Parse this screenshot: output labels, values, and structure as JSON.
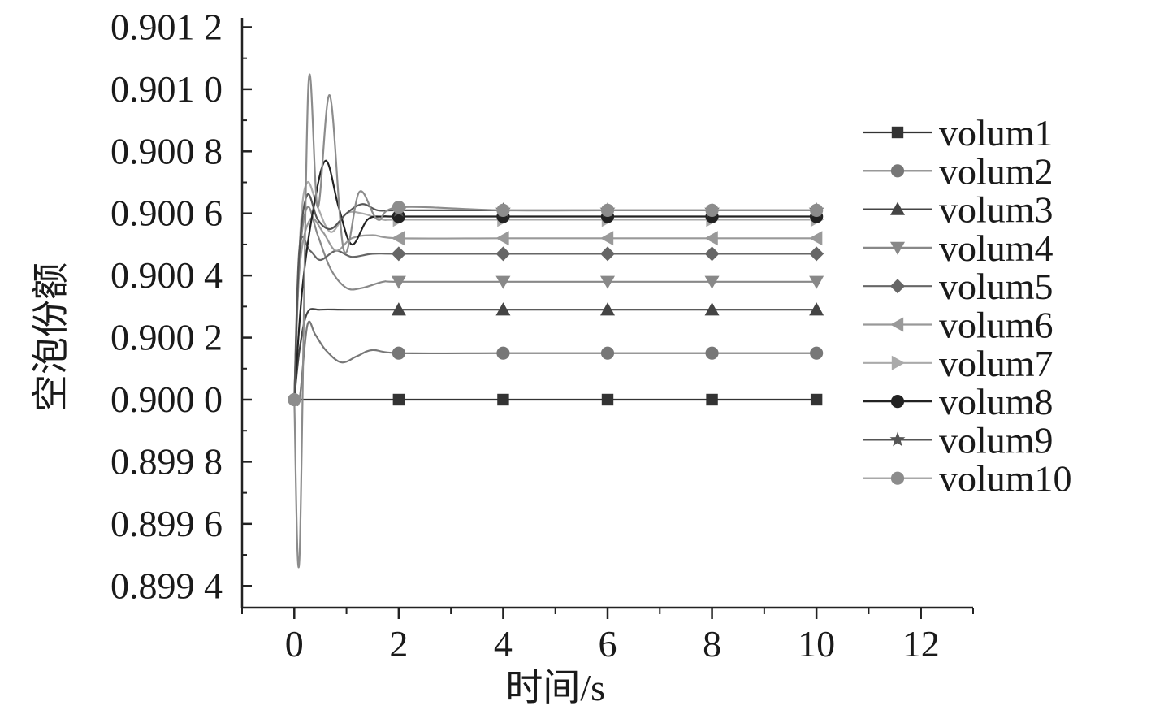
{
  "chart_data": {
    "type": "line",
    "xlabel": "时间/s",
    "ylabel": "空泡份额",
    "xlim": [
      -1,
      13
    ],
    "ylim": [
      0.89933,
      0.90123
    ],
    "x_ticks": [
      0,
      2,
      4,
      6,
      8,
      10,
      12
    ],
    "x_tick_labels": [
      "0",
      "2",
      "4",
      "6",
      "8",
      "10",
      "12"
    ],
    "y_ticks": [
      0.8994,
      0.8996,
      0.8998,
      0.9,
      0.9002,
      0.9004,
      0.9006,
      0.9008,
      0.901,
      0.9012
    ],
    "y_tick_labels": [
      "0.899 4",
      "0.899 6",
      "0.899 8",
      "0.900 0",
      "0.900 2",
      "0.900 4",
      "0.900 6",
      "0.900 8",
      "0.901 0",
      "0.901 2"
    ],
    "marker_x": [
      2,
      4,
      6,
      8,
      10
    ],
    "legend_position": "right",
    "grid": false,
    "series": [
      {
        "name": "volum1",
        "marker": "square",
        "color": "#333333",
        "x": [
          0,
          0.1,
          2,
          4,
          6,
          8,
          10
        ],
        "y": [
          0.9,
          0.9,
          0.9,
          0.9,
          0.9,
          0.9,
          0.9
        ]
      },
      {
        "name": "volum2",
        "marker": "circle",
        "color": "#777777",
        "x": [
          0,
          0.1,
          0.25,
          0.4,
          0.6,
          0.9,
          1.2,
          1.5,
          2,
          4,
          6,
          8,
          10
        ],
        "y": [
          0.9,
          0.9,
          0.90024,
          0.90021,
          0.90016,
          0.90012,
          0.90014,
          0.90016,
          0.90015,
          0.90015,
          0.90015,
          0.90015,
          0.90015
        ]
      },
      {
        "name": "volum3",
        "marker": "triangle-up",
        "color": "#444444",
        "x": [
          0,
          0.1,
          0.25,
          0.5,
          1,
          2,
          4,
          6,
          8,
          10
        ],
        "y": [
          0.9,
          0.90016,
          0.90028,
          0.90029,
          0.90029,
          0.90029,
          0.90029,
          0.90029,
          0.90029,
          0.90029
        ]
      },
      {
        "name": "volum4",
        "marker": "triangle-down",
        "color": "#888888",
        "x": [
          0,
          0.1,
          0.25,
          0.45,
          0.7,
          1,
          1.3,
          1.7,
          2,
          4,
          6,
          8,
          10
        ],
        "y": [
          0.9,
          0.90045,
          0.90062,
          0.90053,
          0.90042,
          0.90036,
          0.90036,
          0.90038,
          0.90038,
          0.90038,
          0.90038,
          0.90038,
          0.90038
        ]
      },
      {
        "name": "volum5",
        "marker": "diamond",
        "color": "#666666",
        "x": [
          0,
          0.1,
          0.3,
          0.5,
          0.8,
          1.1,
          1.5,
          2,
          4,
          6,
          8,
          10
        ],
        "y": [
          0.9,
          0.90049,
          0.90048,
          0.90045,
          0.90048,
          0.90046,
          0.90047,
          0.90047,
          0.90047,
          0.90047,
          0.90047,
          0.90047
        ]
      },
      {
        "name": "volum6",
        "marker": "triangle-left",
        "color": "#999999",
        "x": [
          0,
          0.1,
          0.3,
          0.55,
          0.8,
          1.1,
          1.5,
          2,
          4,
          6,
          8,
          10
        ],
        "y": [
          0.9,
          0.90042,
          0.90058,
          0.90054,
          0.90048,
          0.90052,
          0.90053,
          0.90052,
          0.90052,
          0.90052,
          0.90052,
          0.90052
        ]
      },
      {
        "name": "volum7",
        "marker": "triangle-right",
        "color": "#aaaaaa",
        "x": [
          0,
          0.12,
          0.25,
          0.45,
          0.7,
          1,
          1.3,
          1.7,
          2,
          4,
          6,
          8,
          10
        ],
        "y": [
          0.9,
          0.90055,
          0.9007,
          0.90062,
          0.90054,
          0.9006,
          0.9006,
          0.90058,
          0.90058,
          0.90058,
          0.90058,
          0.90058,
          0.90058
        ]
      },
      {
        "name": "volum8",
        "marker": "circle",
        "color": "#222222",
        "x": [
          0,
          0.15,
          0.35,
          0.6,
          0.85,
          1.1,
          1.4,
          1.7,
          2,
          4,
          6,
          8,
          10
        ],
        "y": [
          0.9,
          0.90035,
          0.9006,
          0.90077,
          0.90062,
          0.9005,
          0.90058,
          0.90059,
          0.90059,
          0.90059,
          0.90059,
          0.90059,
          0.90059
        ]
      },
      {
        "name": "volum9",
        "marker": "star",
        "color": "#555555",
        "x": [
          0,
          0.1,
          0.25,
          0.45,
          0.7,
          1,
          1.3,
          1.6,
          2,
          4,
          6,
          8,
          10
        ],
        "y": [
          0.9,
          0.90048,
          0.90066,
          0.90058,
          0.90055,
          0.9006,
          0.90063,
          0.90061,
          0.90061,
          0.90061,
          0.90061,
          0.90061,
          0.90061
        ]
      },
      {
        "name": "volum10",
        "marker": "circle",
        "color": "#8c8c8c",
        "x": [
          0,
          0.1,
          0.27,
          0.45,
          0.68,
          0.95,
          1.25,
          1.6,
          2,
          4,
          6,
          8,
          10
        ],
        "y": [
          0.9,
          0.89949,
          0.90101,
          0.90062,
          0.90098,
          0.90048,
          0.90067,
          0.90058,
          0.90062,
          0.90061,
          0.90061,
          0.90061,
          0.90061
        ]
      }
    ]
  }
}
